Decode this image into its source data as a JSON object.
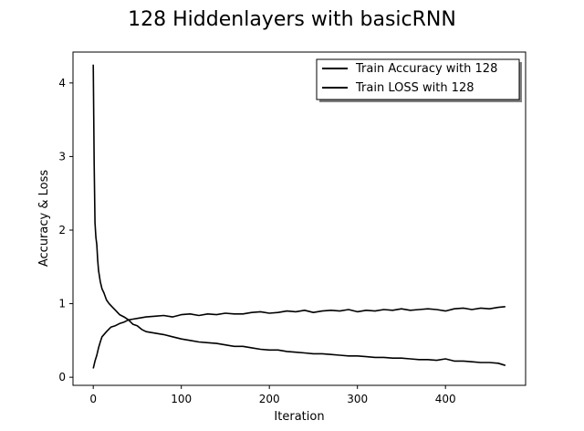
{
  "chart_data": {
    "type": "line",
    "title": "128 Hiddenlayers with basicRNN",
    "xlabel": "Iteration",
    "ylabel": "Accuracy & Loss",
    "xlim": [
      -23,
      491
    ],
    "ylim": [
      -0.11,
      4.42
    ],
    "xticks": [
      0,
      100,
      200,
      300,
      400
    ],
    "yticks": [
      0,
      1,
      2,
      3,
      4
    ],
    "grid": false,
    "legend_position": "top-right",
    "series": [
      {
        "name": "Train Accuracy with 128",
        "color": "#000000",
        "x": [
          0,
          2,
          4,
          6,
          8,
          10,
          15,
          20,
          25,
          30,
          35,
          40,
          45,
          50,
          60,
          70,
          80,
          90,
          100,
          110,
          120,
          130,
          140,
          150,
          160,
          170,
          180,
          190,
          200,
          210,
          220,
          230,
          240,
          250,
          260,
          270,
          280,
          290,
          300,
          310,
          320,
          330,
          340,
          350,
          360,
          370,
          380,
          390,
          400,
          410,
          420,
          430,
          440,
          450,
          460,
          468
        ],
        "y": [
          0.12,
          0.22,
          0.3,
          0.4,
          0.48,
          0.55,
          0.62,
          0.68,
          0.7,
          0.73,
          0.75,
          0.78,
          0.79,
          0.8,
          0.82,
          0.83,
          0.84,
          0.82,
          0.85,
          0.86,
          0.84,
          0.86,
          0.85,
          0.87,
          0.86,
          0.86,
          0.88,
          0.89,
          0.87,
          0.88,
          0.9,
          0.89,
          0.91,
          0.88,
          0.9,
          0.91,
          0.9,
          0.92,
          0.89,
          0.91,
          0.9,
          0.92,
          0.91,
          0.93,
          0.91,
          0.92,
          0.93,
          0.92,
          0.9,
          0.93,
          0.94,
          0.92,
          0.94,
          0.93,
          0.95,
          0.96
        ]
      },
      {
        "name": "Train LOSS with 128",
        "color": "#000000",
        "x": [
          0,
          1,
          2,
          3,
          4,
          5,
          6,
          8,
          10,
          12,
          15,
          18,
          22,
          26,
          30,
          35,
          40,
          45,
          50,
          55,
          60,
          70,
          80,
          90,
          100,
          110,
          120,
          130,
          140,
          150,
          160,
          170,
          180,
          190,
          200,
          210,
          220,
          230,
          240,
          250,
          260,
          270,
          280,
          290,
          300,
          310,
          320,
          330,
          340,
          350,
          360,
          370,
          380,
          390,
          400,
          410,
          420,
          430,
          440,
          450,
          460,
          468
        ],
        "y": [
          4.25,
          2.9,
          2.1,
          1.9,
          1.8,
          1.6,
          1.45,
          1.3,
          1.2,
          1.15,
          1.05,
          1.0,
          0.95,
          0.9,
          0.85,
          0.82,
          0.78,
          0.72,
          0.7,
          0.65,
          0.62,
          0.6,
          0.58,
          0.55,
          0.52,
          0.5,
          0.48,
          0.47,
          0.46,
          0.44,
          0.42,
          0.42,
          0.4,
          0.38,
          0.37,
          0.37,
          0.35,
          0.34,
          0.33,
          0.32,
          0.32,
          0.31,
          0.3,
          0.29,
          0.29,
          0.28,
          0.27,
          0.27,
          0.26,
          0.26,
          0.25,
          0.24,
          0.24,
          0.23,
          0.25,
          0.22,
          0.22,
          0.21,
          0.2,
          0.2,
          0.19,
          0.16
        ]
      }
    ]
  }
}
